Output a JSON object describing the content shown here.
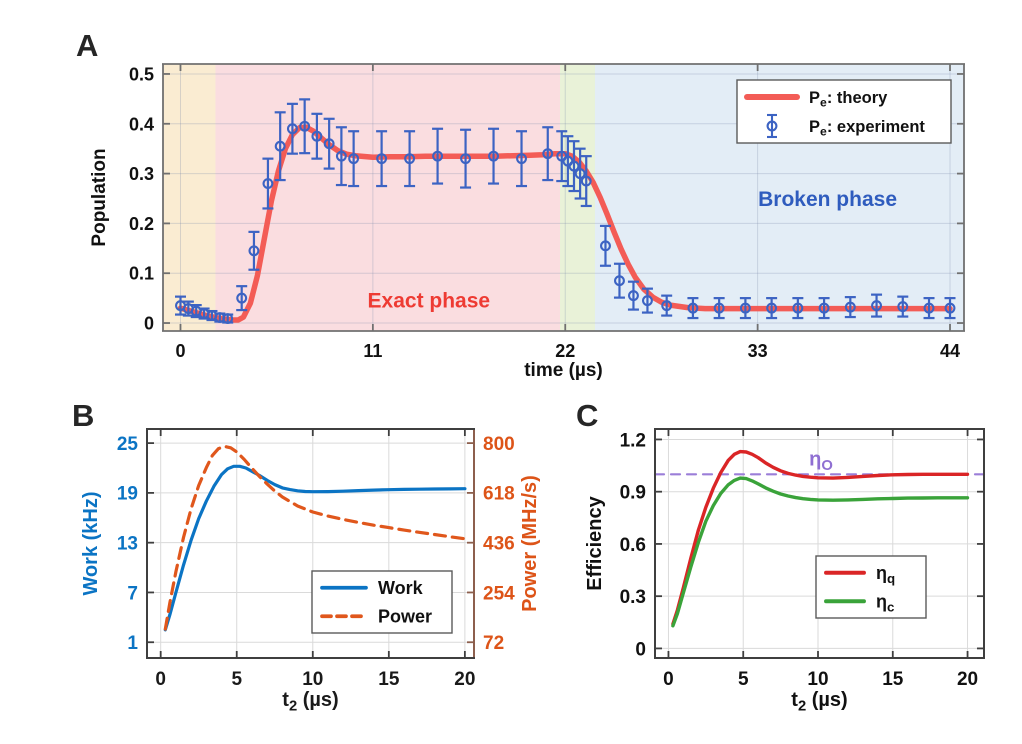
{
  "figure": {
    "background": "#ffffff",
    "panel_labels": {
      "a": "A",
      "b": "B",
      "c": "C"
    }
  },
  "chart_data": [
    {
      "id": "A",
      "type": "line",
      "title": "",
      "xlabel": "time (µs)",
      "ylabel": "Population",
      "xlim": [
        -1,
        44.8
      ],
      "ylim": [
        -0.016,
        0.52
      ],
      "xticks": [
        0,
        11,
        22,
        33,
        44
      ],
      "yticks": [
        0,
        0.1,
        0.2,
        0.3,
        0.4,
        0.5
      ],
      "grid": true,
      "legend_position": "top-right",
      "bands": [
        {
          "name": "ramp-up-region",
          "x0": -1,
          "x1": 2,
          "color": "#faecd2"
        },
        {
          "name": "exact-phase-region",
          "x0": 2,
          "x1": 21.7,
          "color": "#fadde0"
        },
        {
          "name": "ramp-down-region",
          "x0": 21.7,
          "x1": 23.7,
          "color": "#e9f2d8"
        },
        {
          "name": "broken-phase-region",
          "x0": 23.7,
          "x1": 44.8,
          "color": "#e3edf6"
        }
      ],
      "series": [
        {
          "name": "pe-theory",
          "label": "P_e: theory",
          "type": "line",
          "color": "#f35c56",
          "width": 5.5,
          "legend": true,
          "x": [
            0,
            0.5,
            1,
            1.5,
            2,
            2.5,
            3,
            3.3,
            3.6,
            4,
            4.4,
            4.8,
            5.2,
            5.6,
            6,
            6.4,
            6.8,
            7.2,
            7.6,
            8,
            8.5,
            9,
            9.5,
            10,
            11,
            12,
            13,
            14,
            15,
            16,
            17,
            18,
            19,
            20,
            20.7,
            21.4,
            22,
            22.4,
            22.8,
            23.2,
            23.6,
            24,
            24.4,
            24.8,
            25.2,
            25.6,
            26,
            26.5,
            27,
            27.5,
            28,
            29,
            30,
            32,
            34,
            36,
            38,
            40,
            42,
            44
          ],
          "y": [
            0.03,
            0.025,
            0.02,
            0.015,
            0.011,
            0.008,
            0.006,
            0.006,
            0.012,
            0.04,
            0.095,
            0.17,
            0.245,
            0.305,
            0.35,
            0.378,
            0.392,
            0.393,
            0.385,
            0.373,
            0.358,
            0.346,
            0.339,
            0.336,
            0.333,
            0.334,
            0.334,
            0.335,
            0.335,
            0.335,
            0.335,
            0.335,
            0.336,
            0.337,
            0.338,
            0.34,
            0.34,
            0.335,
            0.323,
            0.305,
            0.282,
            0.252,
            0.218,
            0.182,
            0.148,
            0.118,
            0.092,
            0.068,
            0.052,
            0.042,
            0.036,
            0.031,
            0.029,
            0.029,
            0.029,
            0.029,
            0.029,
            0.029,
            0.029,
            0.029
          ]
        },
        {
          "name": "pe-experiment",
          "label": "P_e: experiment",
          "type": "errorbar",
          "color": "#3c63c3",
          "legend": true,
          "points": [
            [
              0,
              0.035,
              0.018
            ],
            [
              0.45,
              0.029,
              0.014
            ],
            [
              0.9,
              0.024,
              0.012
            ],
            [
              1.35,
              0.019,
              0.01
            ],
            [
              1.8,
              0.015,
              0.009
            ],
            [
              2.25,
              0.011,
              0.008
            ],
            [
              2.7,
              0.009,
              0.008
            ],
            [
              3.5,
              0.05,
              0.024
            ],
            [
              4.2,
              0.145,
              0.038
            ],
            [
              5,
              0.28,
              0.05
            ],
            [
              5.7,
              0.355,
              0.068
            ],
            [
              6.4,
              0.39,
              0.05
            ],
            [
              7.1,
              0.395,
              0.054
            ],
            [
              7.8,
              0.375,
              0.045
            ],
            [
              8.5,
              0.36,
              0.05
            ],
            [
              9.2,
              0.335,
              0.058
            ],
            [
              9.9,
              0.33,
              0.055
            ],
            [
              11.5,
              0.33,
              0.055
            ],
            [
              13.1,
              0.33,
              0.055
            ],
            [
              14.7,
              0.335,
              0.055
            ],
            [
              16.3,
              0.33,
              0.058
            ],
            [
              17.9,
              0.335,
              0.055
            ],
            [
              19.5,
              0.33,
              0.055
            ],
            [
              21,
              0.34,
              0.053
            ],
            [
              21.8,
              0.335,
              0.05
            ],
            [
              22.15,
              0.325,
              0.05
            ],
            [
              22.5,
              0.315,
              0.05
            ],
            [
              22.85,
              0.3,
              0.05
            ],
            [
              23.2,
              0.285,
              0.05
            ],
            [
              24.3,
              0.155,
              0.04
            ],
            [
              25.1,
              0.085,
              0.034
            ],
            [
              25.9,
              0.055,
              0.028
            ],
            [
              26.7,
              0.045,
              0.024
            ],
            [
              27.8,
              0.035,
              0.02
            ],
            [
              29.3,
              0.03,
              0.02
            ],
            [
              30.8,
              0.03,
              0.02
            ],
            [
              32.3,
              0.03,
              0.02
            ],
            [
              33.8,
              0.03,
              0.02
            ],
            [
              35.3,
              0.03,
              0.02
            ],
            [
              36.8,
              0.03,
              0.02
            ],
            [
              38.3,
              0.032,
              0.02
            ],
            [
              39.8,
              0.035,
              0.022
            ],
            [
              41.3,
              0.033,
              0.02
            ],
            [
              42.8,
              0.03,
              0.02
            ],
            [
              44,
              0.03,
              0.02
            ]
          ]
        }
      ],
      "annotations": [
        {
          "text": "Exact phase",
          "x": 14.2,
          "y": 0.046,
          "color": "#ee3b33",
          "size": 21
        },
        {
          "text": "Broken phase",
          "x": 37,
          "y": 0.25,
          "color": "#2f5cbe",
          "size": 21
        }
      ]
    },
    {
      "id": "B",
      "type": "line",
      "title": "",
      "xlabel": "t_2 (µs)",
      "ylabel": "Work (kHz)",
      "y2label": "Power (MHz/s)",
      "xlim": [
        -0.9,
        20.6
      ],
      "ylim": [
        -0.9,
        26.7
      ],
      "y2lim": [
        14.4,
        851.6
      ],
      "xticks": [
        0,
        5,
        10,
        15,
        20
      ],
      "yticks": [
        1,
        7,
        13,
        19,
        25
      ],
      "y2ticks": [
        72,
        254,
        436,
        618,
        800
      ],
      "grid": true,
      "legend_position": "bottom-right",
      "axis_colors": {
        "left": "#0b74c4",
        "right": "#dd5418",
        "x": "#1a1a1a"
      },
      "series": [
        {
          "name": "work",
          "label": "Work",
          "type": "line",
          "axis": "left",
          "color": "#0b74c4",
          "width": 3.2,
          "legend": true,
          "x": [
            0.3,
            0.6,
            1,
            1.5,
            2,
            2.5,
            3,
            3.5,
            4,
            4.4,
            4.8,
            5.2,
            5.6,
            6,
            6.5,
            7,
            7.5,
            8,
            8.5,
            9,
            9.5,
            10,
            11,
            12,
            13,
            14,
            15,
            16,
            17,
            18,
            19,
            20
          ],
          "y": [
            2.5,
            4.3,
            7.0,
            10.3,
            13.3,
            15.9,
            18.0,
            19.8,
            21.2,
            21.9,
            22.2,
            22.2,
            22.0,
            21.6,
            21.1,
            20.5,
            20.0,
            19.6,
            19.4,
            19.25,
            19.17,
            19.14,
            19.15,
            19.2,
            19.27,
            19.33,
            19.38,
            19.42,
            19.45,
            19.47,
            19.48,
            19.5
          ]
        },
        {
          "name": "power",
          "label": "Power",
          "type": "line",
          "axis": "right",
          "color": "#e0571c",
          "width": 3.2,
          "dash": "11 7",
          "legend": true,
          "x": [
            0.3,
            0.6,
            1,
            1.5,
            2,
            2.5,
            3,
            3.4,
            3.8,
            4.2,
            4.6,
            5,
            5.5,
            6,
            6.5,
            7,
            7.5,
            8,
            9,
            10,
            11,
            12,
            13,
            14,
            15,
            16,
            17,
            18,
            19,
            20
          ],
          "y": [
            120,
            215,
            330,
            455,
            560,
            645,
            710,
            755,
            780,
            788,
            783,
            768,
            740,
            708,
            678,
            650,
            625,
            603,
            570,
            548,
            533,
            521,
            510,
            500,
            491,
            482,
            474,
            466,
            458,
            450
          ]
        }
      ],
      "annotations": []
    },
    {
      "id": "C",
      "type": "line",
      "title": "",
      "xlabel": "t_2 (µs)",
      "ylabel": "Efficiency",
      "xlim": [
        -0.9,
        21.1
      ],
      "ylim": [
        -0.055,
        1.26
      ],
      "xticks": [
        0,
        5,
        10,
        15,
        20
      ],
      "yticks": [
        0,
        0.3,
        0.6,
        0.9,
        1.2
      ],
      "grid": true,
      "legend_position": "mid-right",
      "series": [
        {
          "name": "eta-otto-line",
          "label": "η_O",
          "type": "line",
          "color": "#9b7ed8",
          "width": 2.2,
          "dash": "9 7",
          "legend": false,
          "x": [
            -0.9,
            21.1
          ],
          "y": [
            1,
            1
          ]
        },
        {
          "name": "eta-q",
          "label": "η_q",
          "type": "line",
          "color": "#da2526",
          "width": 3.4,
          "legend": true,
          "x": [
            0.3,
            0.6,
            1,
            1.5,
            2,
            2.5,
            3,
            3.5,
            4,
            4.4,
            4.8,
            5.2,
            5.6,
            6,
            6.5,
            7,
            7.5,
            8,
            8.5,
            9,
            9.5,
            10,
            11,
            12,
            13,
            14,
            15,
            16,
            17,
            18,
            19,
            20
          ],
          "y": [
            0.14,
            0.22,
            0.35,
            0.52,
            0.68,
            0.81,
            0.92,
            1.01,
            1.08,
            1.115,
            1.13,
            1.128,
            1.115,
            1.095,
            1.065,
            1.04,
            1.02,
            1.005,
            0.995,
            0.988,
            0.983,
            0.98,
            0.978,
            0.982,
            0.988,
            0.993,
            0.997,
            0.999,
            1,
            1,
            1,
            1
          ]
        },
        {
          "name": "eta-c",
          "label": "η_c",
          "type": "line",
          "color": "#3aa33a",
          "width": 3.4,
          "legend": true,
          "x": [
            0.3,
            0.6,
            1,
            1.5,
            2,
            2.5,
            3,
            3.5,
            4,
            4.4,
            4.8,
            5.2,
            5.6,
            6,
            6.5,
            7,
            7.5,
            8,
            8.5,
            9,
            9.5,
            10,
            11,
            12,
            13,
            14,
            15,
            16,
            17,
            18,
            19,
            20
          ],
          "y": [
            0.13,
            0.2,
            0.32,
            0.47,
            0.61,
            0.73,
            0.82,
            0.89,
            0.94,
            0.965,
            0.978,
            0.975,
            0.962,
            0.945,
            0.922,
            0.903,
            0.887,
            0.875,
            0.866,
            0.86,
            0.856,
            0.853,
            0.851,
            0.853,
            0.856,
            0.859,
            0.861,
            0.863,
            0.864,
            0.865,
            0.865,
            0.865
          ]
        }
      ],
      "annotations": [
        {
          "text": "η_O",
          "x": 10.2,
          "y": 1.09,
          "color": "#8f6fd2",
          "size": 20
        }
      ]
    }
  ]
}
